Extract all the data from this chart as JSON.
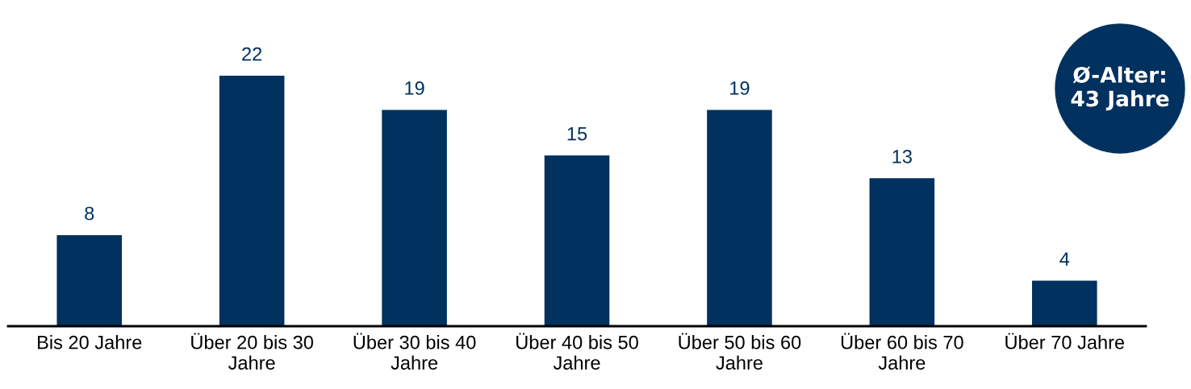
{
  "chart_data": {
    "type": "bar",
    "categories": [
      "Bis 20 Jahre",
      "Über 20 bis 30\nJahre",
      "Über 30 bis 40\nJahre",
      "Über 40 bis 50\nJahre",
      "Über 50 bis 60\nJahre",
      "Über 60 bis 70\nJahre",
      "Über 70 Jahre"
    ],
    "values": [
      8,
      22,
      19,
      15,
      19,
      13,
      4
    ],
    "color": "#00315f",
    "data_labels": true,
    "annotations": [
      "Ø-Alter:\n43 Jahre"
    ]
  }
}
